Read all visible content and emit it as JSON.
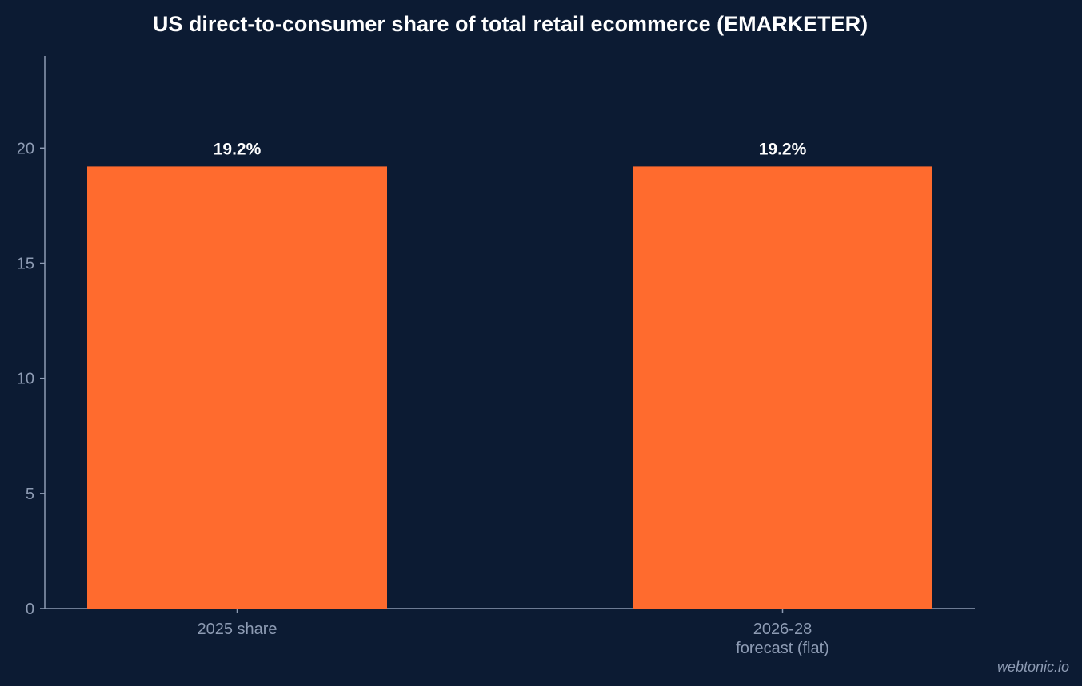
{
  "chart_data": {
    "type": "bar",
    "title": "US direct-to-consumer share of total retail ecommerce (EMARKETER)",
    "categories": [
      [
        "2025 share"
      ],
      [
        "2026-28",
        "forecast (flat)"
      ]
    ],
    "values": [
      19.2,
      19.2
    ],
    "data_labels": [
      "19.2%",
      "19.2%"
    ],
    "y_ticks": [
      0,
      5,
      10,
      15,
      20
    ],
    "ylim": [
      0,
      24
    ],
    "xlabel": "",
    "ylabel": "",
    "grid": false,
    "bar_color": "#ff6b2e",
    "background_color": "#0c1b33",
    "axis_color": "#8d9bb3"
  },
  "watermark": "webtonic.io"
}
